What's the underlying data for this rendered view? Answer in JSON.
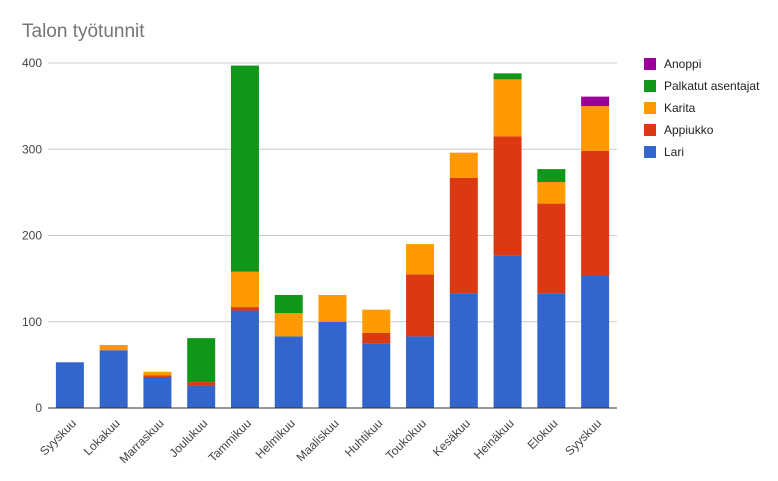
{
  "chart_data": {
    "type": "bar",
    "stacked": true,
    "title": "Talon työtunnit",
    "xlabel": "",
    "ylabel": "",
    "ylim": [
      0,
      400
    ],
    "yticks": [
      0,
      100,
      200,
      300,
      400
    ],
    "grid": true,
    "legend_position": "right",
    "categories": [
      "Syyskuu",
      "Lokakuu",
      "Marraskuu",
      "Joulukuu",
      "Tammikuu",
      "Helmikuu",
      "Maaliskuu",
      "Huhtikuu",
      "Toukokuu",
      "Kesäkuu",
      "Heinäkuu",
      "Elokuu",
      "Syyskuu"
    ],
    "series": [
      {
        "name": "Lari",
        "color": "#3366cc",
        "values": [
          53,
          67,
          36,
          26,
          113,
          83,
          100,
          75,
          83,
          133,
          177,
          133,
          153
        ]
      },
      {
        "name": "Appiukko",
        "color": "#dc3912",
        "values": [
          0,
          0,
          2,
          4,
          4,
          0,
          0,
          12,
          72,
          134,
          138,
          104,
          145
        ]
      },
      {
        "name": "Karita",
        "color": "#ff9900",
        "values": [
          0,
          6,
          4,
          0,
          41,
          27,
          31,
          27,
          35,
          29,
          66,
          25,
          52
        ]
      },
      {
        "name": "Palkatut asentajat",
        "color": "#109618",
        "values": [
          0,
          0,
          0,
          51,
          239,
          21,
          0,
          0,
          0,
          0,
          7,
          15,
          0
        ]
      },
      {
        "name": "Anoppi",
        "color": "#990099",
        "values": [
          0,
          0,
          0,
          0,
          0,
          0,
          0,
          0,
          0,
          0,
          0,
          0,
          11
        ]
      }
    ]
  }
}
